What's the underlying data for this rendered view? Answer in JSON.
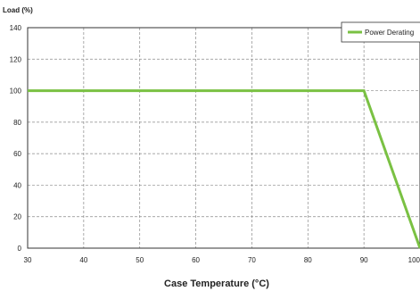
{
  "chart_data": {
    "type": "line",
    "title": "",
    "xlabel": "Case Temperature (°C)",
    "ylabel": "Load (%)",
    "xlim": [
      30,
      100
    ],
    "ylim": [
      0,
      140
    ],
    "x_ticks": [
      30,
      40,
      50,
      60,
      70,
      80,
      90,
      100
    ],
    "y_ticks": [
      0,
      20,
      40,
      60,
      80,
      100,
      120,
      140
    ],
    "grid": true,
    "legend": "top-right",
    "series": [
      {
        "name": "Power Derating",
        "color": "#7ac143",
        "x": [
          30,
          90,
          100
        ],
        "y": [
          100,
          100,
          0
        ]
      }
    ]
  }
}
